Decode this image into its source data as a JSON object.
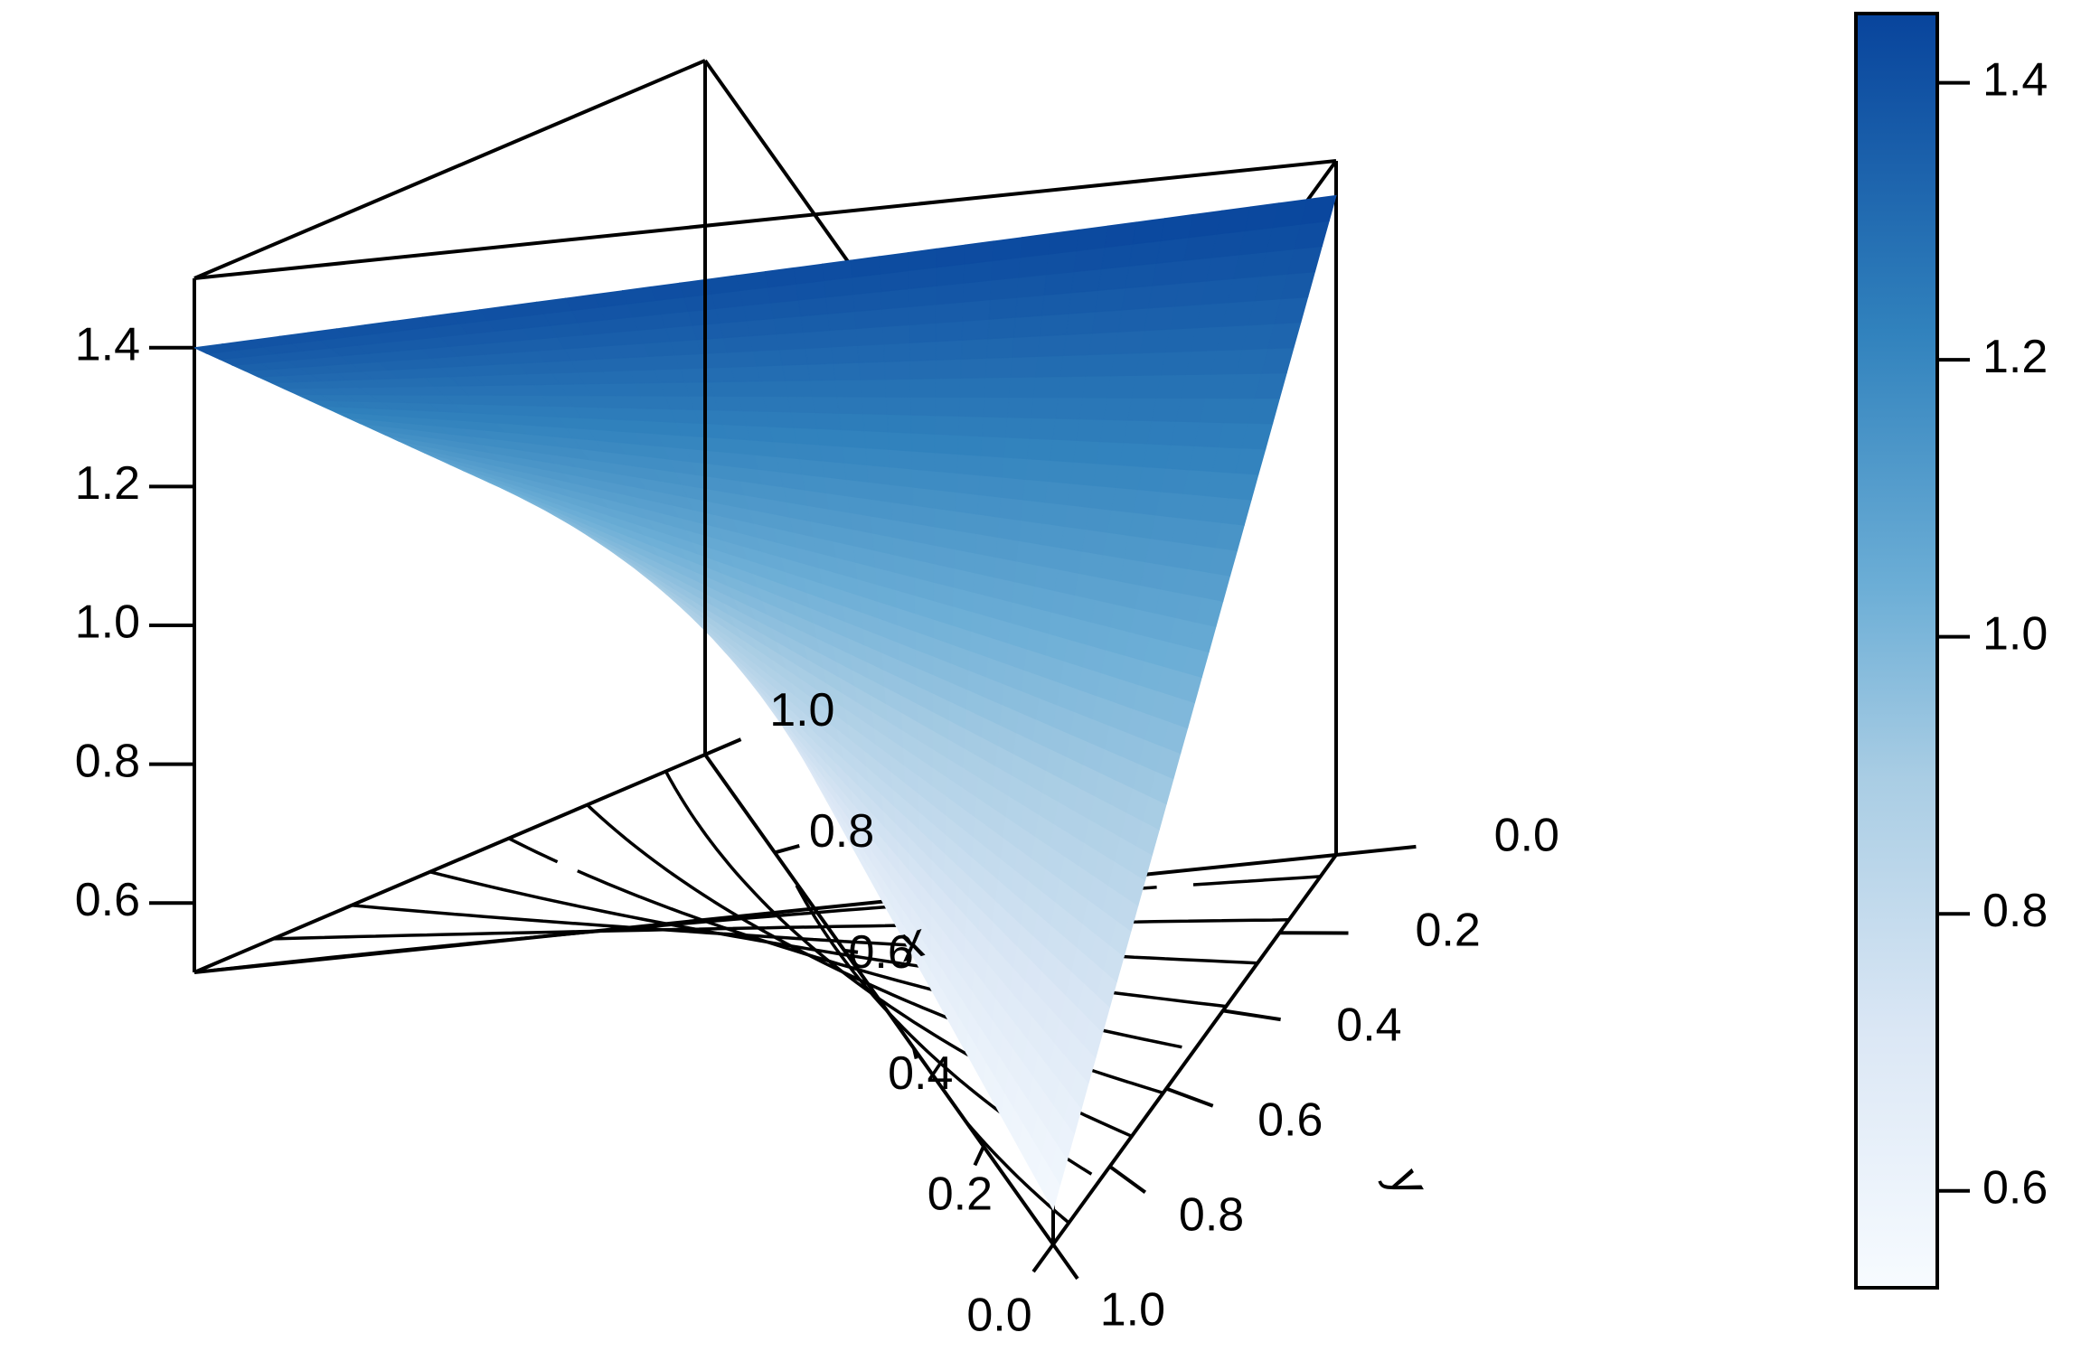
{
  "chart_data": {
    "type": "surface3d",
    "xlabel": "x",
    "ylabel": "y",
    "x": [
      0.0,
      1.0
    ],
    "y": [
      0.0,
      1.0
    ],
    "xlim": [
      0,
      1
    ],
    "ylim": [
      0,
      1
    ],
    "zlim": [
      0.5,
      1.5
    ],
    "z_corners": [
      {
        "x": 0.0,
        "y": 0.0,
        "z": 1.45
      },
      {
        "x": 1.0,
        "y": 0.0,
        "z": 1.4
      },
      {
        "x": 0.0,
        "y": 1.0,
        "z": 0.55
      },
      {
        "x": 1.0,
        "y": 1.0,
        "z": 0.75
      }
    ],
    "x_ticks": [
      "0.0",
      "0.2",
      "0.4",
      "0.6",
      "0.8",
      "1.0"
    ],
    "y_ticks": [
      "0.0",
      "0.2",
      "0.4",
      "0.6",
      "0.8",
      "1.0"
    ],
    "z_ticks": [
      "0.6",
      "0.8",
      "1.0",
      "1.2",
      "1.4"
    ],
    "colorbar": {
      "range": [
        0.53,
        1.45
      ],
      "ticks": [
        "0.6",
        "0.8",
        "1.0",
        "1.2",
        "1.4"
      ],
      "color_low": "#f7fbff",
      "color_high": "#08449c"
    },
    "contour_levels": [
      0.6,
      0.7,
      0.8,
      0.9,
      1.0,
      1.1,
      1.2,
      1.3,
      1.4
    ],
    "grid": false,
    "legend": "colorbar-right"
  }
}
